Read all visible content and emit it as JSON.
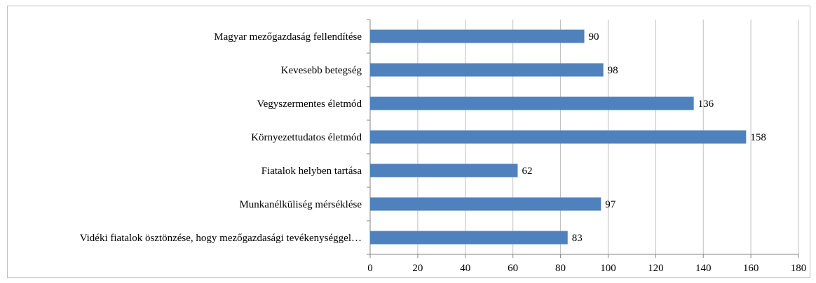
{
  "chart_data": {
    "type": "bar",
    "orientation": "horizontal",
    "categories": [
      "Magyar mezőgazdaság fellendítése",
      "Kevesebb betegség",
      "Vegyszermentes életmód",
      "Környezettudatos életmód",
      "Fiatalok helyben tartása",
      "Munkanélküliség mérséklése",
      "Vidéki fiatalok ösztönzése, hogy mezőgazdasági tevékenységgel…"
    ],
    "values": [
      90,
      98,
      136,
      158,
      62,
      97,
      83
    ],
    "xlim": [
      0,
      180
    ],
    "xticks": [
      "0",
      "20",
      "40",
      "60",
      "80",
      "100",
      "120",
      "140",
      "160",
      "180"
    ],
    "grid": "vertical",
    "legend": "none",
    "bar_color": "#4f81bd",
    "data_labels": true
  }
}
